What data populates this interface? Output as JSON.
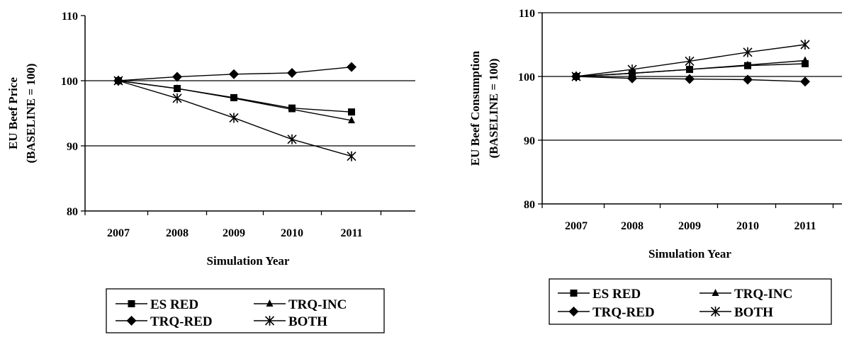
{
  "chart_data": [
    {
      "type": "line",
      "categories": [
        "2007",
        "2008",
        "2009",
        "2010",
        "2011"
      ],
      "xlabel": "Simulation Year",
      "ylabel": "EU Beef Price",
      "ylabel2": "(BASELINE = 100)",
      "ylim": [
        80,
        110
      ],
      "yticks": [
        "80",
        "90",
        "100",
        "110"
      ],
      "gridlines": [
        90,
        100
      ],
      "legend_position": "bottom",
      "series": [
        {
          "name": "ES RED",
          "marker": "square",
          "values": [
            100,
            98.8,
            97.4,
            95.8,
            95.2
          ]
        },
        {
          "name": "TRQ-INC",
          "marker": "triangle",
          "values": [
            100,
            98.8,
            97.3,
            95.6,
            93.9
          ]
        },
        {
          "name": "TRQ-RED",
          "marker": "diamond",
          "values": [
            100,
            100.6,
            101.0,
            101.2,
            102.1
          ]
        },
        {
          "name": "BOTH",
          "marker": "asterisk",
          "values": [
            100,
            97.3,
            94.3,
            91.0,
            88.4
          ]
        }
      ]
    },
    {
      "type": "line",
      "categories": [
        "2007",
        "2008",
        "2009",
        "2010",
        "2011"
      ],
      "xlabel": "Simulation Year",
      "ylabel": "EU Beef Consumption",
      "ylabel2": "(BASELINE = 100)",
      "ylim": [
        80,
        110
      ],
      "yticks": [
        "80",
        "90",
        "100",
        "110"
      ],
      "gridlines": [
        90,
        100,
        110
      ],
      "legend_position": "bottom",
      "series": [
        {
          "name": "ES RED",
          "marker": "square",
          "values": [
            100,
            100.5,
            101.1,
            101.7,
            102.0
          ]
        },
        {
          "name": "TRQ-INC",
          "marker": "triangle",
          "values": [
            100,
            100.5,
            101.1,
            101.8,
            102.5
          ]
        },
        {
          "name": "TRQ-RED",
          "marker": "diamond",
          "values": [
            100,
            99.7,
            99.6,
            99.5,
            99.2
          ]
        },
        {
          "name": "BOTH",
          "marker": "asterisk",
          "values": [
            100,
            101.1,
            102.4,
            103.8,
            105.0
          ]
        }
      ]
    }
  ]
}
